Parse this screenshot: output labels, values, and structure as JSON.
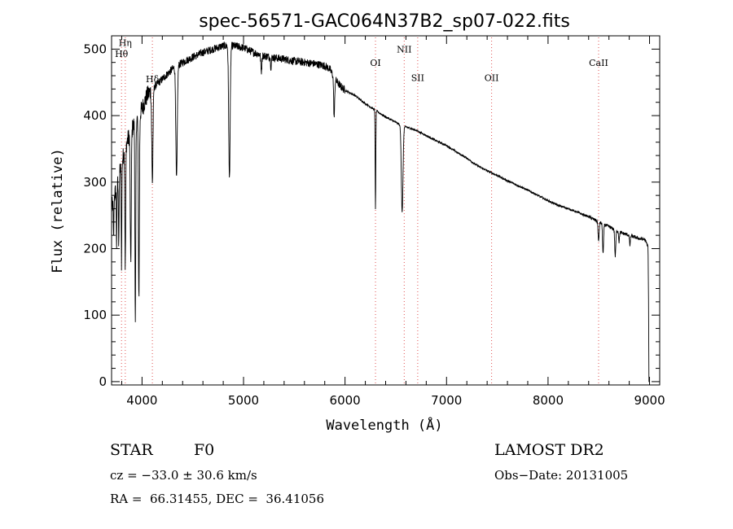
{
  "chart_data": {
    "type": "line",
    "title": "spec-56571-GAC064N37B2_sp07-022.fits",
    "xlabel": "Wavelength (Å)",
    "ylabel": "Flux (relative)",
    "xlim": [
      3700,
      9100
    ],
    "ylim": [
      -5,
      520
    ],
    "xticks": [
      4000,
      5000,
      6000,
      7000,
      8000,
      9000
    ],
    "yticks": [
      0,
      100,
      200,
      300,
      400,
      500
    ],
    "series": [
      {
        "name": "flux",
        "continuum": {
          "x": [
            3700,
            3760,
            3800,
            3850,
            3900,
            3950,
            4000,
            4050,
            4100,
            4200,
            4300,
            4400,
            4500,
            4600,
            4700,
            4800,
            4900,
            5000,
            5100,
            5200,
            5300,
            5400,
            5500,
            5600,
            5700,
            5800,
            5850,
            5900,
            5950,
            6000,
            6100,
            6200,
            6300,
            6400,
            6500,
            6550,
            6600,
            6700,
            6800,
            6900,
            7000,
            7100,
            7200,
            7300,
            7400,
            7500,
            7600,
            7700,
            7800,
            7900,
            8000,
            8100,
            8200,
            8300,
            8400,
            8500,
            8600,
            8700,
            8800,
            8900,
            8950,
            8980
          ],
          "y": [
            260,
            300,
            330,
            360,
            380,
            395,
            410,
            430,
            440,
            455,
            470,
            480,
            488,
            495,
            500,
            505,
            505,
            502,
            495,
            490,
            487,
            485,
            482,
            480,
            478,
            475,
            470,
            455,
            445,
            438,
            430,
            418,
            408,
            398,
            390,
            385,
            383,
            378,
            370,
            362,
            355,
            345,
            336,
            325,
            317,
            310,
            302,
            295,
            288,
            280,
            272,
            265,
            260,
            254,
            248,
            240,
            233,
            225,
            220,
            215,
            214,
            205
          ]
        },
        "absorption_lines": [
          {
            "center": 3720,
            "depth": 60,
            "width": 3
          },
          {
            "center": 3750,
            "depth": 90,
            "width": 3
          },
          {
            "center": 3771,
            "depth": 110,
            "width": 3
          },
          {
            "center": 3798,
            "depth": 150,
            "width": 3
          },
          {
            "center": 3835,
            "depth": 180,
            "width": 4
          },
          {
            "center": 3889,
            "depth": 200,
            "width": 5
          },
          {
            "center": 3934,
            "depth": 310,
            "width": 4
          },
          {
            "center": 3969,
            "depth": 270,
            "width": 5
          },
          {
            "center": 4102,
            "depth": 140,
            "width": 6
          },
          {
            "center": 4340,
            "depth": 170,
            "width": 7
          },
          {
            "center": 4861,
            "depth": 200,
            "width": 7
          },
          {
            "center": 5175,
            "depth": 25,
            "width": 5
          },
          {
            "center": 5270,
            "depth": 15,
            "width": 4
          },
          {
            "center": 5893,
            "depth": 60,
            "width": 5
          },
          {
            "center": 6300,
            "depth": 150,
            "width": 3
          },
          {
            "center": 6563,
            "depth": 130,
            "width": 8
          },
          {
            "center": 8498,
            "depth": 30,
            "width": 5
          },
          {
            "center": 8542,
            "depth": 45,
            "width": 5
          },
          {
            "center": 8662,
            "depth": 40,
            "width": 5
          },
          {
            "center": 8700,
            "depth": 15,
            "width": 4
          },
          {
            "center": 8806,
            "depth": 15,
            "width": 4
          },
          {
            "center": 8998,
            "depth": 205,
            "width": 3
          }
        ]
      }
    ],
    "line_markers": [
      {
        "label": "Hη",
        "x": 3835,
        "label_y": 505
      },
      {
        "label": "Hθ",
        "x": 3798,
        "label_y": 488
      },
      {
        "label": "Hδ",
        "x": 4102,
        "label_y": 450
      },
      {
        "label": "OI",
        "x": 6300,
        "label_y": 475
      },
      {
        "label": "NII",
        "x": 6583,
        "label_y": 495
      },
      {
        "label": "SII",
        "x": 6716,
        "label_y": 452
      },
      {
        "label": "OII",
        "x": 7444,
        "label_y": 452
      },
      {
        "label": "CaII",
        "x": 8498,
        "label_y": 475
      }
    ]
  },
  "info": {
    "object_type": "STAR",
    "subclass": "F0",
    "survey": "LAMOST DR2",
    "cz": "cz = −33.0 ± 30.6 km/s",
    "obs_date": "Obs−Date: 20131005",
    "coords": "RA =  66.31455, DEC =  36.41056"
  }
}
